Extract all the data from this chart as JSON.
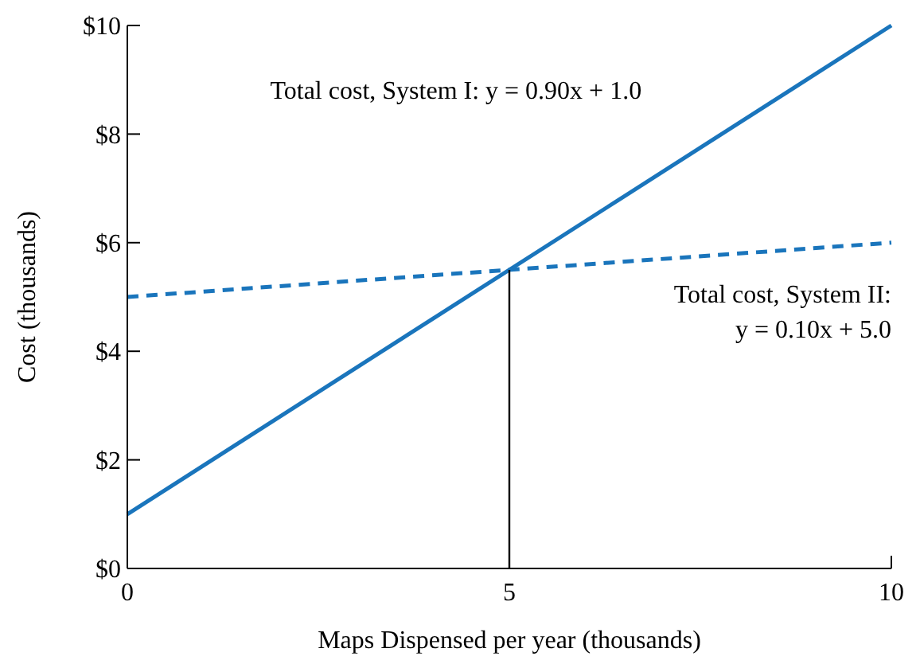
{
  "chart_data": {
    "type": "line",
    "xlabel": "Maps Dispensed per year (thousands)",
    "ylabel": "Cost (thousands)",
    "xlim": [
      0,
      10
    ],
    "xticks": [
      0,
      5,
      10
    ],
    "ylim": [
      0,
      10
    ],
    "yticks": [
      {
        "value": 0,
        "label": "$0"
      },
      {
        "value": 2,
        "label": "$2"
      },
      {
        "value": 4,
        "label": "$4"
      },
      {
        "value": 6,
        "label": "$6"
      },
      {
        "value": 8,
        "label": "$8"
      },
      {
        "value": 10,
        "label": "$10"
      }
    ],
    "series": [
      {
        "color": "#1a75bc",
        "x": [
          0,
          10
        ],
        "values": [
          1,
          10
        ],
        "line_style": "solid"
      },
      {
        "color": "#1a75bc",
        "x": [
          0,
          10
        ],
        "values": [
          5,
          6
        ],
        "line_style": "dashed"
      },
      {
        "color": "#000000",
        "x": [
          5,
          5
        ],
        "values": [
          0,
          5.5
        ],
        "line_style": "solid"
      }
    ],
    "annotations": [
      "Total cost, System I: y = 0.90x + 1.0",
      "Total cost, System II:\ny = 0.10x + 5.0"
    ],
    "grid": false,
    "marker": "none"
  }
}
